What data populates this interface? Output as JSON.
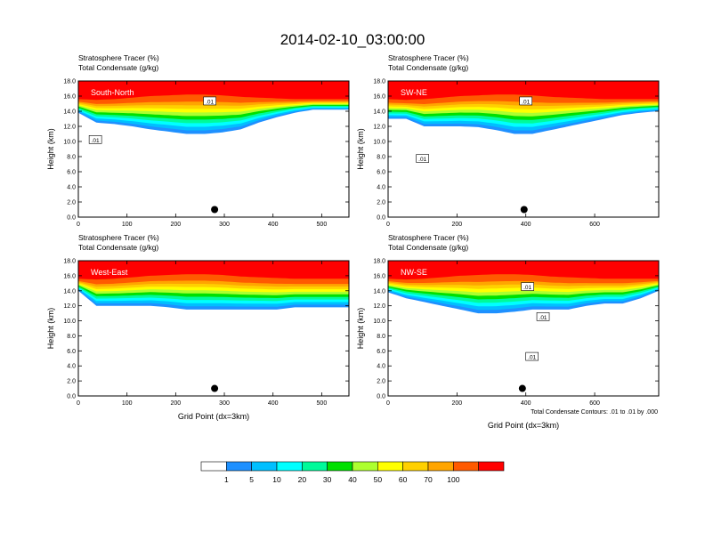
{
  "figure": {
    "title": "2014-02-10_03:00:00",
    "contour_note": "Total Condensate Contours: .01 to .01 by .000"
  },
  "chart_data": [
    {
      "type": "heatmap",
      "label": "South-North",
      "title_lines": [
        "Stratosphere Tracer   (%)",
        "Total Condensate   (g/kg)"
      ],
      "ylabel": "Height (km)",
      "xlabel": "",
      "xlim": [
        0,
        556
      ],
      "ylim": [
        0,
        18
      ],
      "xticks": [
        0,
        100,
        200,
        300,
        400,
        500
      ],
      "yticks": [
        0.0,
        2.0,
        4.0,
        6.0,
        8.0,
        10.0,
        12.0,
        14.0,
        16.0,
        18.0
      ],
      "marker": {
        "x": 280,
        "y": 1.0
      },
      "contour_labels": [
        {
          "text": ".01",
          "x": 35,
          "y": 10.2
        },
        {
          "text": ".01",
          "x": 270,
          "y": 15.3
        }
      ],
      "base_heights": [
        13.8,
        12.5,
        12.3,
        12.0,
        11.6,
        11.3,
        11.0,
        11.0,
        11.2,
        11.6,
        12.5,
        13.2,
        13.8,
        14.2,
        14.2,
        14.2
      ],
      "top_heights": [
        15.6,
        15.5,
        15.6,
        15.8,
        16.0,
        16.1,
        16.2,
        16.2,
        16.1,
        15.9,
        15.8,
        15.7,
        15.6,
        15.6,
        15.6,
        15.6
      ]
    },
    {
      "type": "heatmap",
      "label": "SW-NE",
      "title_lines": [
        "Stratosphere Tracer   (%)",
        "Total Condensate   (g/kg)"
      ],
      "ylabel": "Height (km)",
      "xlabel": "",
      "xlim": [
        0,
        786
      ],
      "ylim": [
        0,
        18
      ],
      "xticks": [
        0,
        200,
        400,
        600
      ],
      "yticks": [
        0.0,
        2.0,
        4.0,
        6.0,
        8.0,
        10.0,
        12.0,
        14.0,
        16.0,
        18.0
      ],
      "marker": {
        "x": 395,
        "y": 1.0
      },
      "contour_labels": [
        {
          "text": ".01",
          "x": 100,
          "y": 7.7
        },
        {
          "text": ".01",
          "x": 400,
          "y": 15.3
        }
      ],
      "base_heights": [
        13.0,
        13.0,
        12.0,
        12.0,
        12.0,
        11.9,
        11.5,
        11.0,
        11.0,
        11.5,
        12.0,
        12.5,
        13.0,
        13.5,
        13.8,
        14.0
      ],
      "top_heights": [
        15.6,
        15.5,
        15.6,
        15.8,
        16.0,
        16.1,
        16.2,
        16.2,
        16.1,
        15.9,
        15.8,
        15.7,
        15.6,
        15.6,
        15.6,
        15.6
      ]
    },
    {
      "type": "heatmap",
      "label": "West-East",
      "title_lines": [
        "Stratosphere Tracer   (%)",
        "Total Condensate   (g/kg)"
      ],
      "ylabel": "Height (km)",
      "xlabel": "Grid Point (dx=3km)",
      "xlim": [
        0,
        556
      ],
      "ylim": [
        0,
        18
      ],
      "xticks": [
        0,
        100,
        200,
        300,
        400,
        500
      ],
      "yticks": [
        0.0,
        2.0,
        4.0,
        6.0,
        8.0,
        10.0,
        12.0,
        14.0,
        16.0,
        18.0
      ],
      "marker": {
        "x": 280,
        "y": 1.0
      },
      "contour_labels": [],
      "base_heights": [
        14.0,
        12.0,
        12.0,
        12.0,
        12.0,
        11.8,
        11.5,
        11.5,
        11.5,
        11.5,
        11.5,
        11.5,
        11.8,
        11.8,
        11.8,
        11.8
      ],
      "top_heights": [
        15.6,
        15.5,
        15.6,
        15.8,
        16.0,
        16.1,
        16.2,
        16.2,
        16.1,
        15.9,
        15.8,
        15.7,
        15.6,
        15.6,
        15.6,
        15.6
      ]
    },
    {
      "type": "heatmap",
      "label": "NW-SE",
      "title_lines": [
        "Stratosphere Tracer   (%)",
        "Total Condensate   (g/kg)"
      ],
      "ylabel": "Height (km)",
      "xlabel": "Grid Point (dx=3km)",
      "xlim": [
        0,
        786
      ],
      "ylim": [
        0,
        18
      ],
      "xticks": [
        0,
        200,
        400,
        600
      ],
      "yticks": [
        0.0,
        2.0,
        4.0,
        6.0,
        8.0,
        10.0,
        12.0,
        14.0,
        16.0,
        18.0
      ],
      "marker": {
        "x": 390,
        "y": 1.0
      },
      "contour_labels": [
        {
          "text": ".01",
          "x": 405,
          "y": 14.5
        },
        {
          "text": ".01",
          "x": 450,
          "y": 10.5
        },
        {
          "text": ".01",
          "x": 418,
          "y": 5.2
        }
      ],
      "base_heights": [
        13.8,
        13.0,
        12.5,
        12.0,
        11.5,
        11.0,
        11.0,
        11.2,
        11.5,
        11.5,
        11.5,
        12.0,
        12.3,
        12.3,
        13.0,
        14.0
      ],
      "top_heights": [
        15.6,
        15.5,
        15.6,
        15.8,
        16.0,
        16.1,
        16.2,
        16.2,
        16.1,
        15.9,
        15.8,
        15.7,
        15.6,
        15.6,
        15.6,
        15.6
      ]
    }
  ],
  "colorbar": {
    "labels": [
      "1",
      "5",
      "10",
      "20",
      "30",
      "40",
      "50",
      "60",
      "70",
      "100"
    ],
    "colors": [
      "#ffffff",
      "#1e90ff",
      "#00bfff",
      "#00ffff",
      "#00fa9a",
      "#00e000",
      "#adff2f",
      "#ffff00",
      "#ffd000",
      "#ffa500",
      "#ff5a00",
      "#ff0000"
    ]
  }
}
